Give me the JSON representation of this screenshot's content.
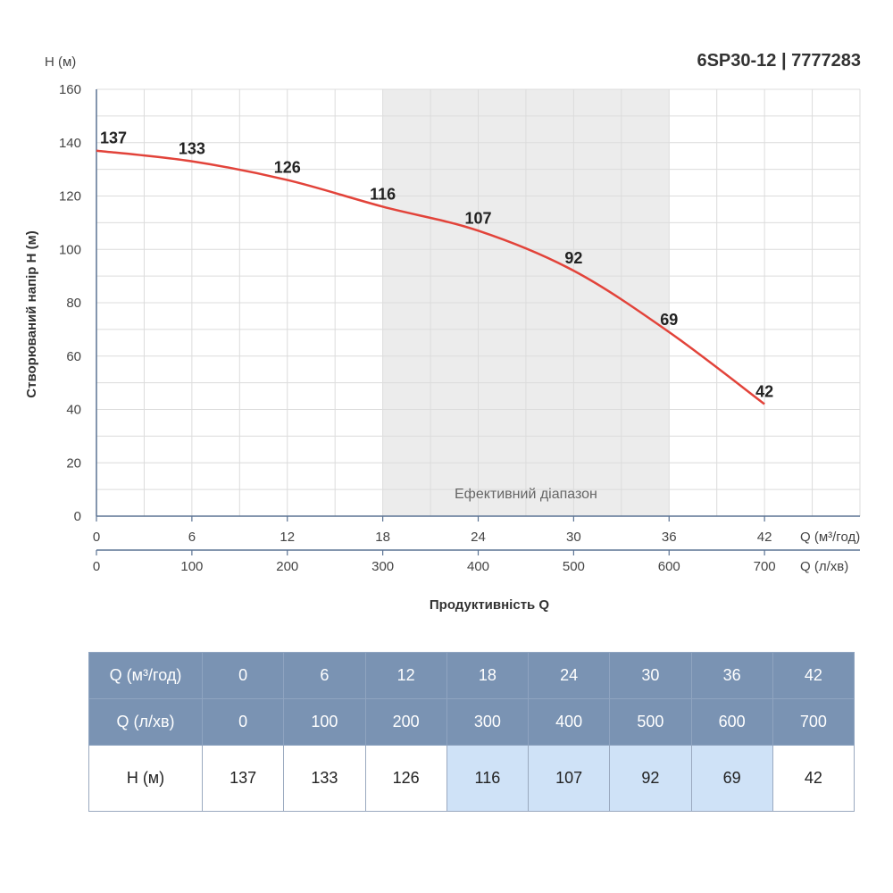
{
  "chart_data": {
    "type": "line",
    "title": "6SP30-12 | 7777283",
    "ylabel": "Створюваний напір H (м)",
    "y_unit_label": "H (м)",
    "xlabel": "Продуктивність Q",
    "x_primary": {
      "unit": "Q (м³/год)",
      "ticks": [
        0,
        6,
        12,
        18,
        24,
        30,
        36,
        42
      ]
    },
    "x_secondary": {
      "unit": "Q (л/хв)",
      "ticks": [
        0,
        100,
        200,
        300,
        400,
        500,
        600,
        700
      ]
    },
    "xlim": [
      0,
      48
    ],
    "ylim": [
      0,
      160
    ],
    "y_ticks": [
      0,
      20,
      40,
      60,
      80,
      100,
      120,
      140,
      160
    ],
    "grid": true,
    "series": [
      {
        "x": [
          0,
          6,
          12,
          18,
          24,
          30,
          36,
          42
        ],
        "values": [
          137,
          133,
          126,
          116,
          107,
          92,
          69,
          42
        ],
        "color": "#e2433a"
      }
    ],
    "band": {
      "from": 18,
      "to": 36,
      "label": "Ефективний діапазон",
      "color": "#ececec"
    }
  },
  "table": {
    "rows": [
      {
        "label": "Q (м³/год)",
        "cells": [
          "0",
          "6",
          "12",
          "18",
          "24",
          "30",
          "36",
          "42"
        ]
      },
      {
        "label": "Q (л/хв)",
        "cells": [
          "0",
          "100",
          "200",
          "300",
          "400",
          "500",
          "600",
          "700"
        ]
      },
      {
        "label": "H (м)",
        "cells": [
          "137",
          "133",
          "126",
          "116",
          "107",
          "92",
          "69",
          "42"
        ]
      }
    ],
    "highlight_cols": [
      3,
      4,
      5,
      6
    ],
    "header_color": "#7a93b3",
    "highlight_color": "#cfe2f7"
  }
}
